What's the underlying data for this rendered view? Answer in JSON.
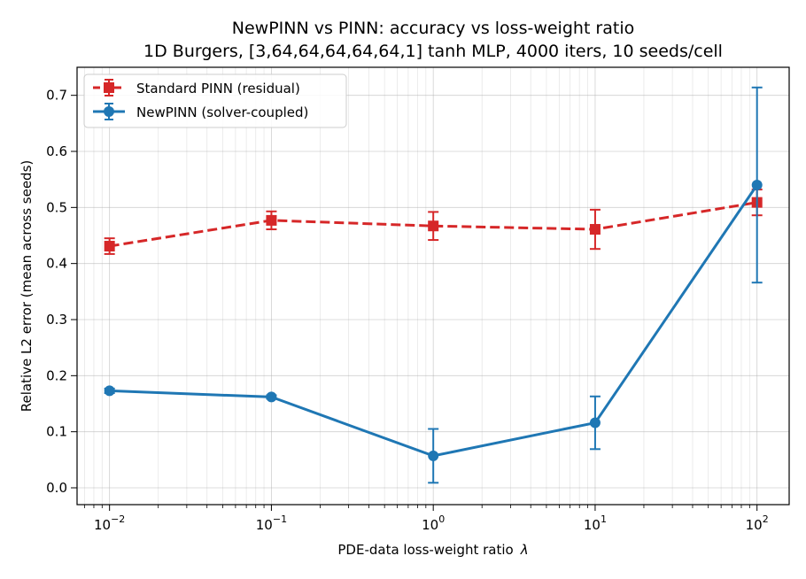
{
  "chart_data": {
    "type": "line",
    "title": "NewPINN vs PINN: accuracy vs loss-weight ratio",
    "subtitle": "1D Burgers, [3,64,64,64,64,64,1] tanh MLP, 4000 iters, 10 seeds/cell",
    "xlabel": "PDE-data loss-weight ratio",
    "xlabel_symbol": "λ",
    "ylabel": "Relative L2 error (mean across seeds)",
    "x_scale": "log",
    "x": [
      0.01,
      0.1,
      1,
      10,
      100
    ],
    "xlim": [
      0.0063,
      158
    ],
    "ylim": [
      -0.03,
      0.75
    ],
    "x_ticks": [
      {
        "value": 0.01,
        "base": "10",
        "exp": "−2"
      },
      {
        "value": 0.1,
        "base": "10",
        "exp": "−1"
      },
      {
        "value": 1,
        "base": "10",
        "exp": "0"
      },
      {
        "value": 10,
        "base": "10",
        "exp": "1"
      },
      {
        "value": 100,
        "base": "10",
        "exp": "2"
      }
    ],
    "y_ticks": [
      {
        "value": 0.0,
        "label": "0.0"
      },
      {
        "value": 0.1,
        "label": "0.1"
      },
      {
        "value": 0.2,
        "label": "0.2"
      },
      {
        "value": 0.3,
        "label": "0.3"
      },
      {
        "value": 0.4,
        "label": "0.4"
      },
      {
        "value": 0.5,
        "label": "0.5"
      },
      {
        "value": 0.6,
        "label": "0.6"
      },
      {
        "value": 0.7,
        "label": "0.7"
      }
    ],
    "grid": true,
    "legend_position": "upper-left",
    "series": [
      {
        "key": "pinn",
        "name": "Standard PINN (residual)",
        "color": "#d62728",
        "linestyle": "dashed",
        "marker": "square",
        "values": [
          0.431,
          0.477,
          0.467,
          0.461,
          0.509
        ],
        "errors": [
          0.014,
          0.016,
          0.025,
          0.035,
          0.023
        ]
      },
      {
        "key": "newpinn",
        "name": "NewPINN (solver-coupled)",
        "color": "#1f77b4",
        "linestyle": "solid",
        "marker": "circle",
        "values": [
          0.173,
          0.162,
          0.057,
          0.116,
          0.54
        ],
        "errors": [
          0.004,
          0.003,
          0.048,
          0.047,
          0.174
        ]
      }
    ]
  }
}
